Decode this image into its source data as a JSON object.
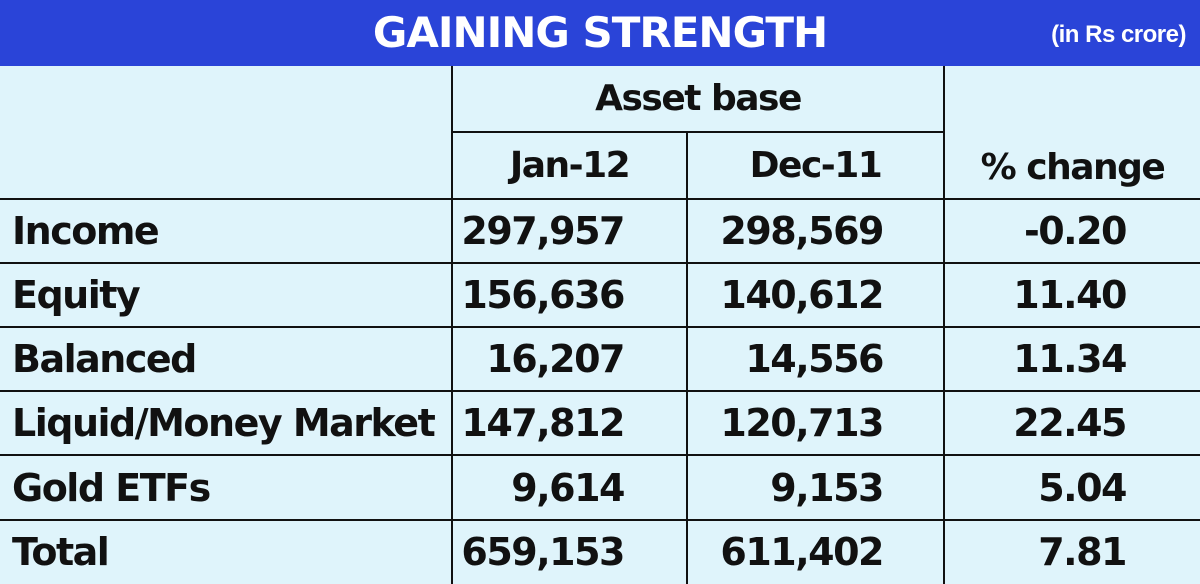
{
  "header": {
    "title": "GAINING STRENGTH",
    "unit": "(in Rs crore)"
  },
  "colors": {
    "header_bg": "#2a44d8",
    "header_text": "#ffffff",
    "table_bg": "#dff4fb",
    "grid": "#111111"
  },
  "table": {
    "group_header": "Asset base",
    "columns": [
      "Jan-12",
      "Dec-11",
      "% change"
    ],
    "rows": [
      {
        "label": "Income",
        "jan12": "297,957",
        "dec11": "298,569",
        "change": "-0.20"
      },
      {
        "label": "Equity",
        "jan12": "156,636",
        "dec11": "140,612",
        "change": "11.40"
      },
      {
        "label": "Balanced",
        "jan12": "16,207",
        "dec11": "14,556",
        "change": "11.34"
      },
      {
        "label": "Liquid/Money Market",
        "jan12": "147,812",
        "dec11": "120,713",
        "change": "22.45"
      },
      {
        "label": "Gold ETFs",
        "jan12": "9,614",
        "dec11": "9,153",
        "change": "5.04"
      },
      {
        "label": "Total",
        "jan12": "659,153",
        "dec11": "611,402",
        "change": "7.81"
      }
    ]
  },
  "chart_data": {
    "type": "table",
    "title": "GAINING STRENGTH",
    "subtitle": "(in Rs crore)",
    "group_header": "Asset base",
    "columns": [
      "Jan-12",
      "Dec-11",
      "% change"
    ],
    "rows": [
      {
        "category": "Income",
        "Jan-12": 297957,
        "Dec-11": 298569,
        "% change": -0.2
      },
      {
        "category": "Equity",
        "Jan-12": 156636,
        "Dec-11": 140612,
        "% change": 11.4
      },
      {
        "category": "Balanced",
        "Jan-12": 16207,
        "Dec-11": 14556,
        "% change": 11.34
      },
      {
        "category": "Liquid/Money Market",
        "Jan-12": 147812,
        "Dec-11": 120713,
        "% change": 22.45
      },
      {
        "category": "Gold ETFs",
        "Jan-12": 9614,
        "Dec-11": 9153,
        "% change": 5.04
      },
      {
        "category": "Total",
        "Jan-12": 659153,
        "Dec-11": 611402,
        "% change": 7.81
      }
    ]
  }
}
